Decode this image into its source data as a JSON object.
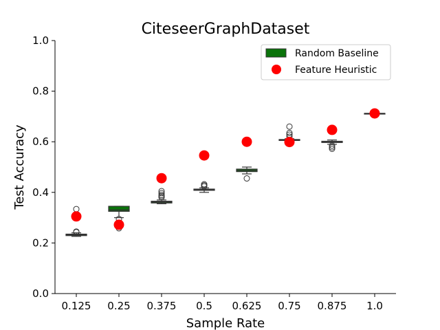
{
  "chart_data": {
    "type": "box",
    "title": "CiteseerGraphDataset",
    "xlabel": "Sample Rate",
    "ylabel": "Test Accuracy",
    "ylim": [
      0.0,
      1.0
    ],
    "yticks": [
      "0.0",
      "0.2",
      "0.4",
      "0.6",
      "0.8",
      "1.0"
    ],
    "categories": [
      "0.125",
      "0.25",
      "0.375",
      "0.5",
      "0.625",
      "0.75",
      "0.875",
      "1.0"
    ],
    "legend_position": "top-right",
    "series": [
      {
        "name": "Random Baseline",
        "kind": "box",
        "color": "#0a730a",
        "boxes": [
          {
            "whislo": 0.226,
            "q1": 0.229,
            "med": 0.232,
            "q3": 0.235,
            "whishi": 0.24,
            "fliers": [
              0.245,
              0.243,
              0.334
            ]
          },
          {
            "whislo": 0.3,
            "q1": 0.325,
            "med": 0.33,
            "q3": 0.345,
            "whishi": 0.345,
            "fliers": [
              0.295,
              0.265,
              0.258
            ]
          },
          {
            "whislo": 0.355,
            "q1": 0.358,
            "med": 0.362,
            "q3": 0.365,
            "whishi": 0.37,
            "fliers": [
              0.38,
              0.385,
              0.39,
              0.397,
              0.405
            ]
          },
          {
            "whislo": 0.4,
            "q1": 0.408,
            "med": 0.411,
            "q3": 0.413,
            "whishi": 0.418,
            "fliers": [
              0.424,
              0.428,
              0.432
            ]
          },
          {
            "whislo": 0.473,
            "q1": 0.482,
            "med": 0.487,
            "q3": 0.492,
            "whishi": 0.5,
            "fliers": [
              0.455
            ]
          },
          {
            "whislo": 0.6,
            "q1": 0.605,
            "med": 0.607,
            "q3": 0.609,
            "whishi": 0.612,
            "fliers": [
              0.62,
              0.628,
              0.635,
              0.66
            ]
          },
          {
            "whislo": 0.59,
            "q1": 0.597,
            "med": 0.6,
            "q3": 0.602,
            "whishi": 0.607,
            "fliers": [
              0.585,
              0.578,
              0.572
            ]
          },
          {
            "whislo": 0.712,
            "q1": 0.712,
            "med": 0.712,
            "q3": 0.712,
            "whishi": 0.712,
            "fliers": []
          }
        ]
      },
      {
        "name": "Feature Heuristic",
        "kind": "scatter",
        "color": "#ff0000",
        "values": [
          0.305,
          0.272,
          0.456,
          0.546,
          0.6,
          0.599,
          0.647,
          0.712
        ]
      }
    ]
  }
}
